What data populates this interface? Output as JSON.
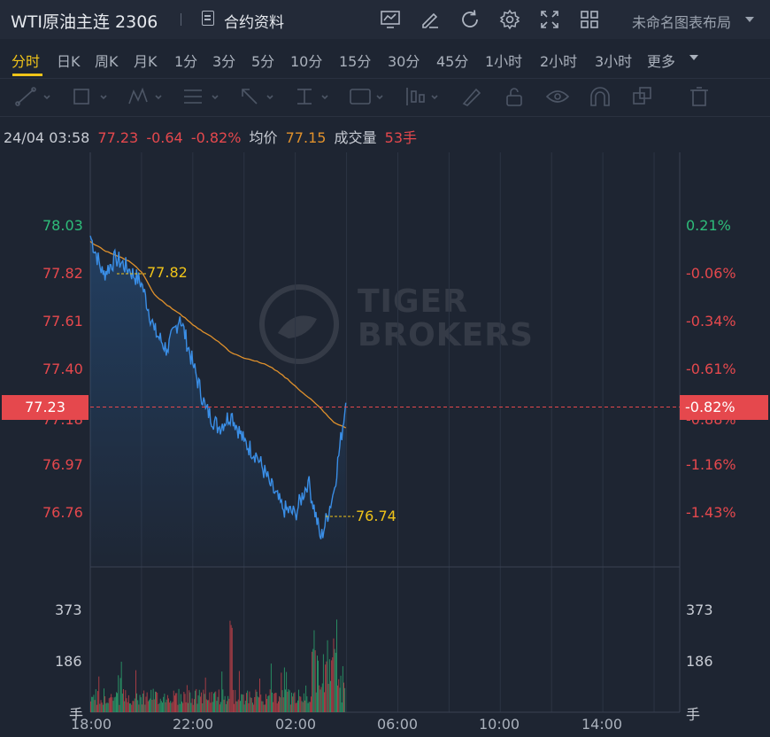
{
  "header": {
    "title": "WTI原油主连 2306",
    "contract_label": "合约资料",
    "layout_label": "未命名图表布局"
  },
  "tabs": [
    "分时",
    "日K",
    "周K",
    "月K",
    "1分",
    "3分",
    "5分",
    "10分",
    "15分",
    "30分",
    "45分",
    "1小时",
    "2小时",
    "3小时",
    "更多"
  ],
  "active_tab": "分时",
  "toolbar_icons": [
    "trend-line-icon",
    "rectangle-icon",
    "pattern-icon",
    "fib-icon",
    "arrow-icon",
    "measure-icon",
    "text-icon",
    "position-icon",
    "brush-icon",
    "lock-icon",
    "eye-icon",
    "magnet-icon",
    "clone-icon",
    "trash-icon"
  ],
  "header_icons": [
    "indicator-icon",
    "draw-icon",
    "refresh-icon",
    "settings-icon",
    "fullscreen-icon",
    "grid-layout-icon"
  ],
  "info_bar": {
    "datetime": "24/04 03:58",
    "price": "77.23",
    "change": "-0.64",
    "change_pct": "-0.82%",
    "avg_label": "均价",
    "avg_value": "77.15",
    "volume_label": "成交量",
    "volume_value": "53手"
  },
  "watermark": [
    "TIGER",
    "BROKERS"
  ],
  "colors": {
    "up": "#2ebd7a",
    "down": "#e5484d",
    "price_line": "#3a8ee6",
    "avg_line": "#e0912c",
    "accent": "#f0c419"
  },
  "chart_data": {
    "type": "line",
    "x_ticks": [
      "18:00",
      "22:00",
      "02:00",
      "06:00",
      "10:00",
      "14:00"
    ],
    "price_ticks_left": [
      "78.03",
      "77.82",
      "77.61",
      "77.40",
      "77.23",
      "76.97",
      "76.76"
    ],
    "price_ticks_right": [
      "0.21%",
      "-0.06%",
      "-0.34%",
      "-0.61%",
      "-0.82%",
      "-1.16%",
      "-1.43%"
    ],
    "current_price": "77.23",
    "current_pct": "-0.82%",
    "hidden_tick_left": "77.18",
    "hidden_tick_right": "-0.88%",
    "high_label": "77.82",
    "low_label": "76.74",
    "ylim": [
      76.65,
      78.14
    ],
    "volume_ticks": [
      "373",
      "186"
    ],
    "volume_unit": "手",
    "volume_max": 400,
    "series": [
      {
        "name": "price",
        "x": [
          18.0,
          18.5,
          19.0,
          19.5,
          20.0,
          20.5,
          21.0,
          21.5,
          22.0,
          22.5,
          23.0,
          23.5,
          24.0,
          24.5,
          25.0,
          25.5,
          26.0,
          26.5,
          27.0,
          27.5,
          27.97
        ],
        "values": [
          77.84,
          77.7,
          77.76,
          77.72,
          77.67,
          77.5,
          77.43,
          77.55,
          77.38,
          77.22,
          77.15,
          77.2,
          77.1,
          77.05,
          76.95,
          76.86,
          76.84,
          76.96,
          76.75,
          76.92,
          77.24
        ]
      },
      {
        "name": "avg",
        "x": [
          18.0,
          18.5,
          19.0,
          19.5,
          20.0,
          20.5,
          21.0,
          21.5,
          22.0,
          22.5,
          23.0,
          23.5,
          24.0,
          24.5,
          25.0,
          25.5,
          26.0,
          26.5,
          27.0,
          27.5,
          27.97
        ],
        "values": [
          77.82,
          77.79,
          77.77,
          77.75,
          77.71,
          77.63,
          77.59,
          77.56,
          77.52,
          77.49,
          77.46,
          77.42,
          77.4,
          77.39,
          77.37,
          77.34,
          77.3,
          77.26,
          77.22,
          77.17,
          77.15
        ]
      }
    ]
  }
}
